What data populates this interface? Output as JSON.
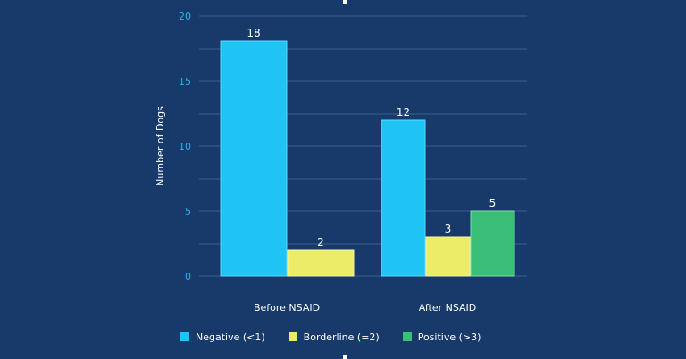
{
  "chart_data": {
    "type": "bar",
    "title": "",
    "xlabel": "",
    "ylabel": "Number of Dogs",
    "ylim": [
      0,
      20
    ],
    "yticks": [
      0,
      5,
      10,
      15,
      20
    ],
    "grid": true,
    "legend_position": "bottom",
    "groups": [
      {
        "category": "Before NSAID",
        "bars": [
          {
            "series": "Negative (<1)",
            "value": 18,
            "label": "18"
          },
          {
            "series": "Borderline (=2)",
            "value": 2,
            "label": "2"
          }
        ]
      },
      {
        "category": "After NSAID",
        "bars": [
          {
            "series": "Negative (<1)",
            "value": 12,
            "label": "12"
          },
          {
            "series": "Borderline (=2)",
            "value": 3,
            "label": "3"
          },
          {
            "series": "Positive (>3)",
            "value": 5,
            "label": "5"
          }
        ]
      }
    ],
    "series": [
      {
        "name": "Negative (<1)",
        "color": "#20c4f4"
      },
      {
        "name": "Borderline (=2)",
        "color": "#ecec68"
      },
      {
        "name": "Positive (>3)",
        "color": "#3bbf78"
      }
    ]
  },
  "colors": {
    "background": "#173a6a",
    "axis_text": "#2eb2e8",
    "grid": "#3a5d8d",
    "text": "#ffffff"
  }
}
